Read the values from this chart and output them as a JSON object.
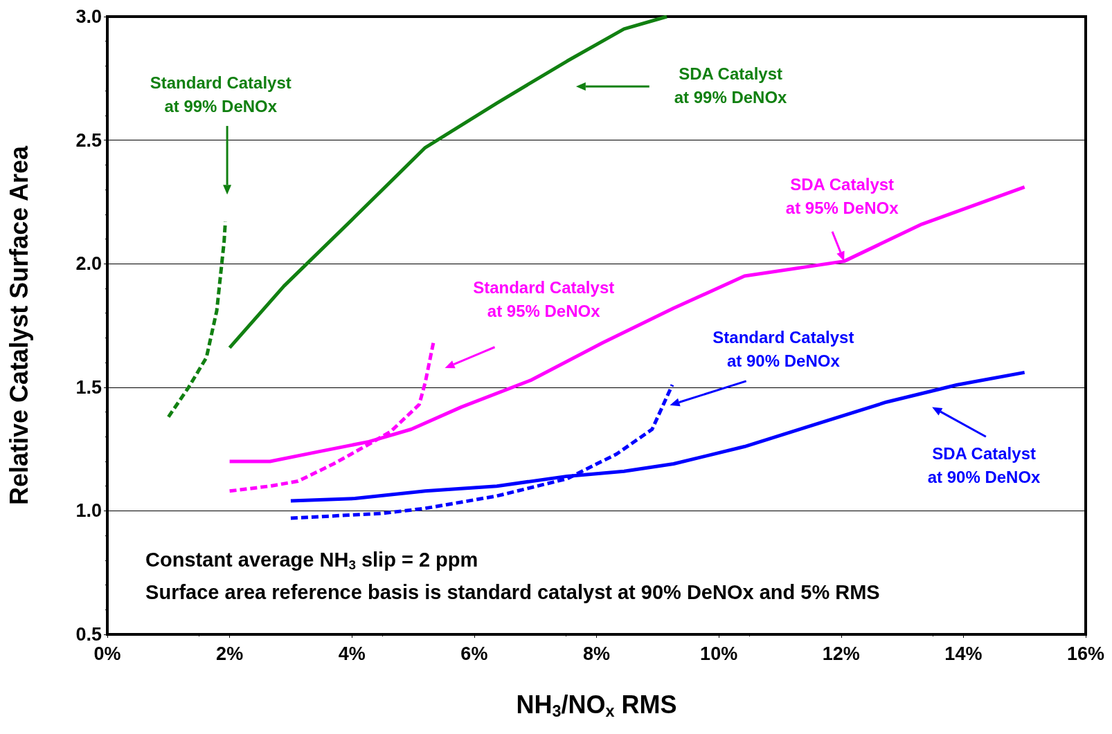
{
  "chart_data": {
    "type": "line",
    "xlabel": "NH$_{3}$/NO$_{x}$ RMS",
    "ylabel": "Relative Catalyst Surface Area",
    "xlim": [
      0,
      16
    ],
    "xticks": [
      {
        "value": 0,
        "label": "0%"
      },
      {
        "value": 2,
        "label": "2%"
      },
      {
        "value": 4,
        "label": "4%"
      },
      {
        "value": 6,
        "label": "6%"
      },
      {
        "value": 8,
        "label": "8%"
      },
      {
        "value": 10,
        "label": "10%"
      },
      {
        "value": 12,
        "label": "12%"
      },
      {
        "value": 14,
        "label": "14%"
      },
      {
        "value": 16,
        "label": "16%"
      }
    ],
    "ylim": [
      0.5,
      3.0
    ],
    "yticks": [
      {
        "value": 0.5,
        "label": "0.5"
      },
      {
        "value": 1,
        "label": "1.0"
      },
      {
        "value": 1.5,
        "label": "1.5"
      },
      {
        "value": 2,
        "label": "2.0"
      },
      {
        "value": 2.5,
        "label": "2.5"
      },
      {
        "value": 3,
        "label": "3.0"
      }
    ],
    "grid": "y",
    "marker": "none",
    "series": [
      {
        "color": "#118011",
        "line_style": "dashed",
        "x": [
          1.0,
          1.33,
          1.62,
          1.79,
          1.91,
          1.93
        ],
        "values": [
          1.38,
          1.5,
          1.62,
          1.81,
          2.09,
          2.17
        ]
      },
      {
        "color": "#118011",
        "line_style": "solid",
        "x": [
          2.0,
          2.89,
          4.05,
          5.2,
          6.37,
          7.52,
          8.45,
          9.15
        ],
        "values": [
          1.66,
          1.91,
          2.19,
          2.47,
          2.65,
          2.82,
          2.95,
          3.0
        ]
      },
      {
        "color": "#ff00ff",
        "line_style": "dashed",
        "x": [
          2.0,
          2.66,
          3.12,
          3.7,
          4.28,
          4.63,
          5.1,
          5.2,
          5.34
        ],
        "values": [
          1.08,
          1.1,
          1.12,
          1.19,
          1.27,
          1.32,
          1.43,
          1.52,
          1.69
        ]
      },
      {
        "color": "#ff00ff",
        "line_style": "solid",
        "x": [
          2.0,
          2.66,
          3.47,
          4.28,
          4.97,
          5.79,
          6.94,
          8.1,
          9.26,
          10.42,
          12.05,
          13.32,
          15.0
        ],
        "values": [
          1.2,
          1.2,
          1.24,
          1.28,
          1.33,
          1.42,
          1.53,
          1.68,
          1.82,
          1.95,
          2.01,
          2.16,
          2.31
        ]
      },
      {
        "color": "#0000ff",
        "line_style": "dashed",
        "x": [
          3.0,
          4.51,
          5.2,
          6.37,
          7.52,
          8.33,
          8.91,
          9.24
        ],
        "values": [
          0.97,
          0.99,
          1.01,
          1.06,
          1.13,
          1.23,
          1.33,
          1.51
        ]
      },
      {
        "color": "#0000ff",
        "line_style": "solid",
        "x": [
          3.0,
          4.05,
          5.2,
          6.37,
          7.52,
          8.45,
          9.26,
          10.42,
          11.58,
          12.74,
          13.9,
          15.0
        ],
        "values": [
          1.04,
          1.05,
          1.08,
          1.1,
          1.14,
          1.16,
          1.19,
          1.26,
          1.35,
          1.44,
          1.51,
          1.56
        ]
      }
    ],
    "annotations": [
      "Standard Catalyst\nat 99% DeNOx",
      "SDA Catalyst\nat 99% DeNOx",
      "Standard Catalyst\nat 95% DeNOx",
      {
        "text": "SDA Catalyst\nat 95% DeNOx",
        "x": 12.05,
        "y": 2.01
      },
      "Standard Catalyst\nat 90% DeNOx",
      "SDA Catalyst\nat 90% DeNOx",
      "Constant average NH$_{3}$ slip = 2 ppm",
      "Surface area reference basis is standard catalyst at 90% DeNOx and 5% RMS"
    ]
  }
}
